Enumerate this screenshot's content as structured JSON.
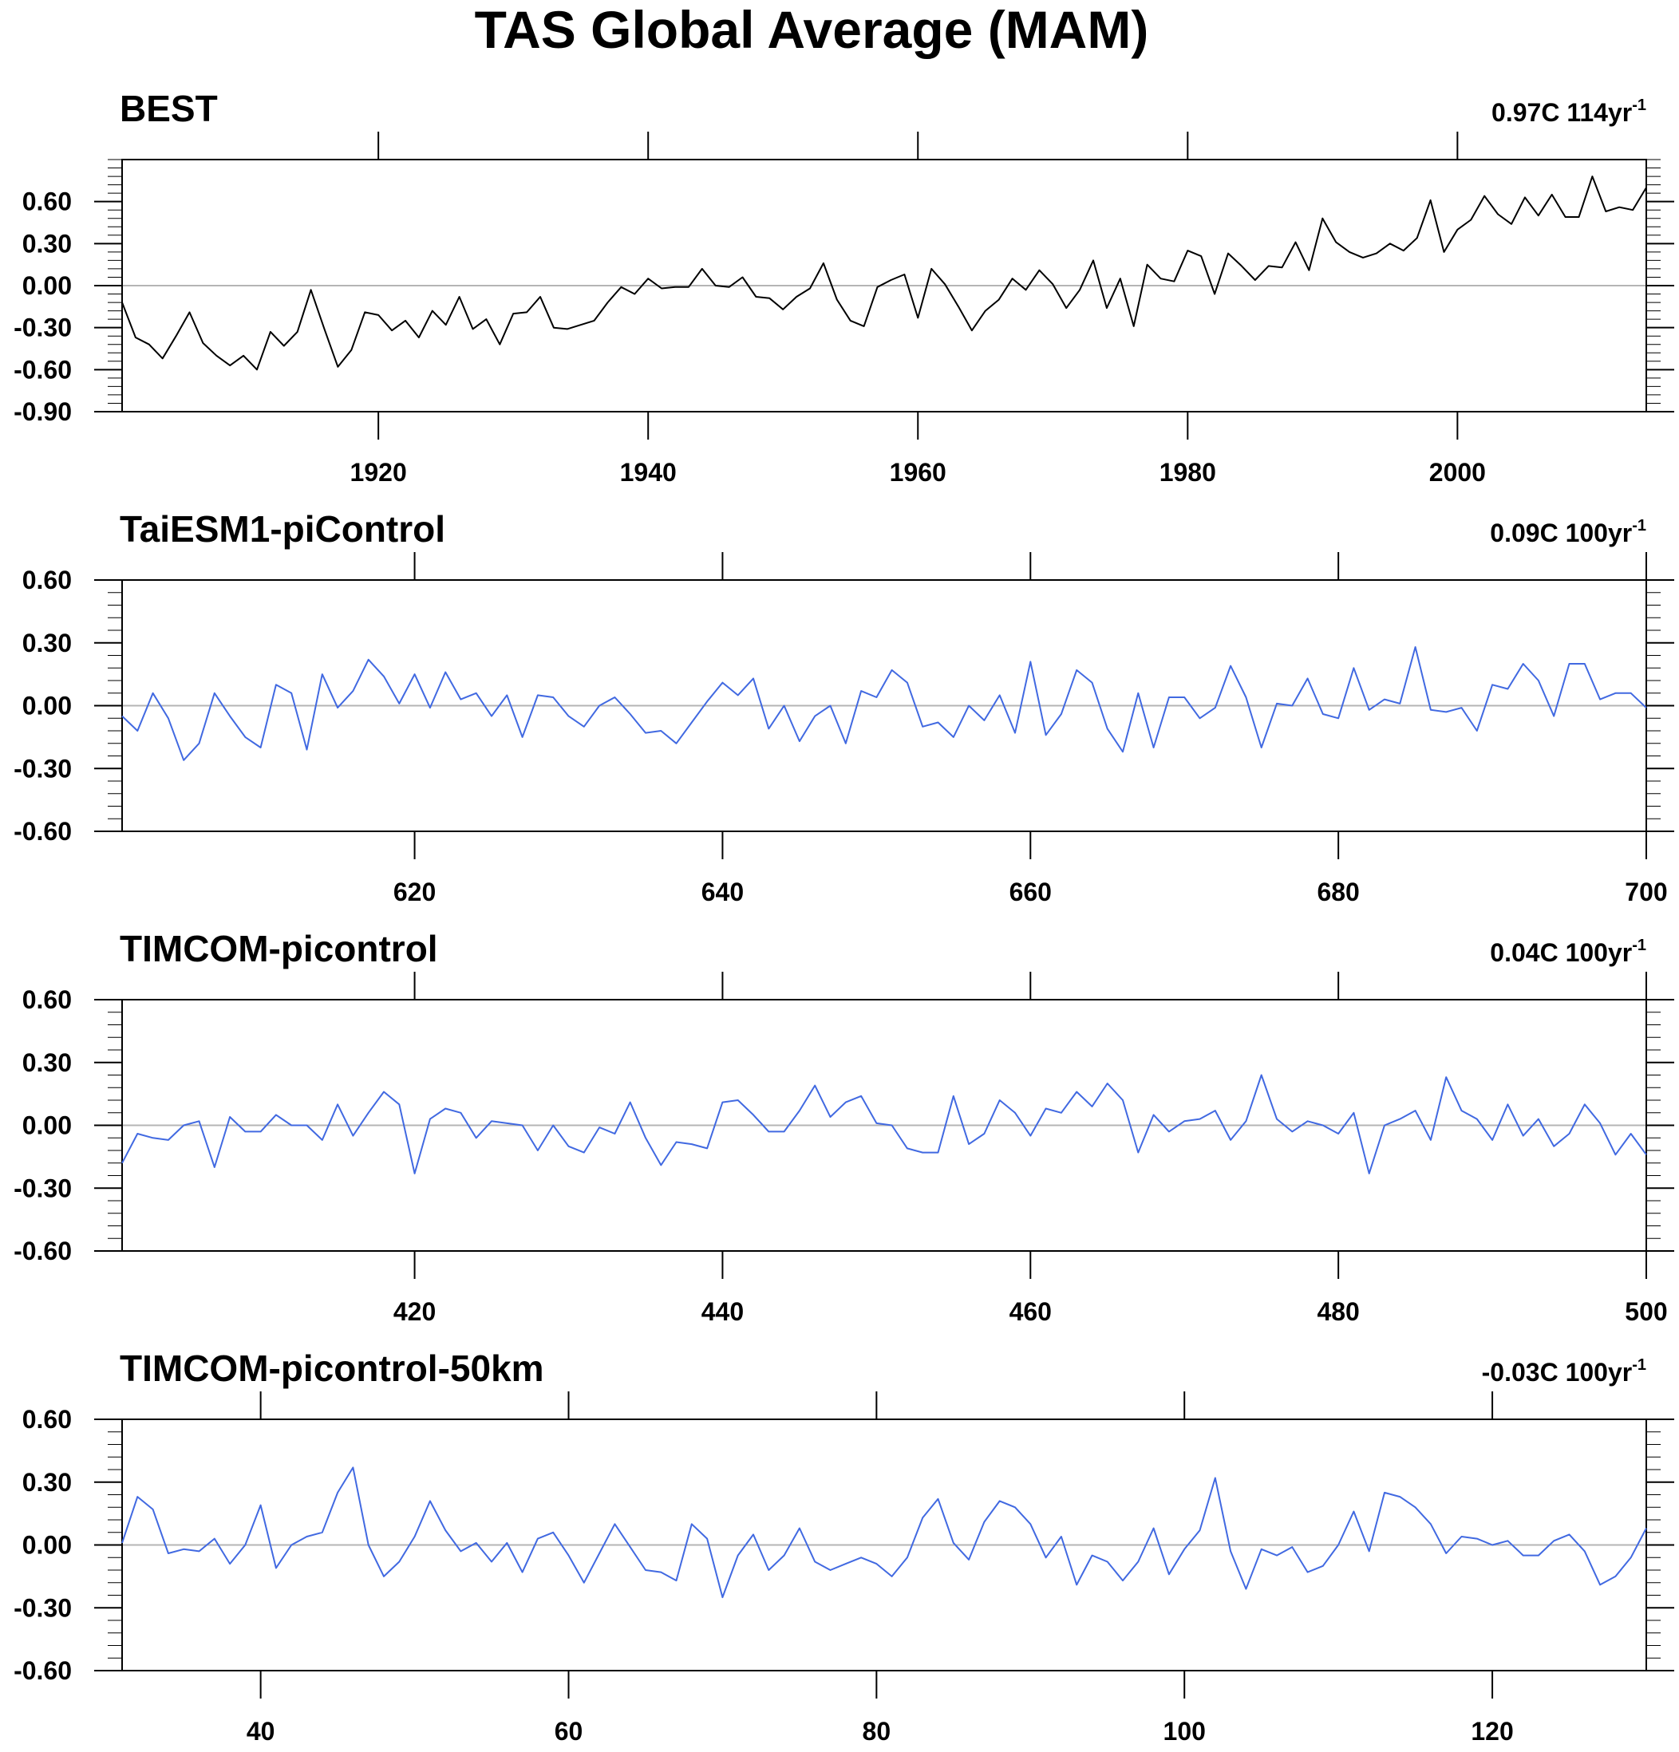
{
  "title": "TAS Global Average (MAM)",
  "chart_data": [
    {
      "type": "line",
      "title": "BEST",
      "trend": {
        "value": "0.97C 114yr",
        "exponent": "-1"
      },
      "xlim": [
        1901,
        2014
      ],
      "ylim": [
        -0.9,
        0.9
      ],
      "xticks": [
        1920,
        1940,
        1960,
        1980,
        2000
      ],
      "xtick_labels": [
        "1920",
        "1940",
        "1960",
        "1980",
        "2000"
      ],
      "yticks": [
        -0.9,
        -0.6,
        -0.3,
        0.0,
        0.3,
        0.6
      ],
      "ytick_labels": [
        "-0.90",
        "-0.60",
        "-0.30",
        "0.00",
        "0.30",
        "0.60"
      ],
      "color": "#000000",
      "x": [
        1901,
        1902,
        1903,
        1904,
        1905,
        1906,
        1907,
        1908,
        1909,
        1910,
        1911,
        1912,
        1913,
        1914,
        1915,
        1916,
        1917,
        1918,
        1919,
        1920,
        1921,
        1922,
        1923,
        1924,
        1925,
        1926,
        1927,
        1928,
        1929,
        1930,
        1931,
        1932,
        1933,
        1934,
        1935,
        1936,
        1937,
        1938,
        1939,
        1940,
        1941,
        1942,
        1943,
        1944,
        1945,
        1946,
        1947,
        1948,
        1949,
        1950,
        1951,
        1952,
        1953,
        1954,
        1955,
        1956,
        1957,
        1958,
        1959,
        1960,
        1961,
        1962,
        1963,
        1964,
        1965,
        1966,
        1967,
        1968,
        1969,
        1970,
        1971,
        1972,
        1973,
        1974,
        1975,
        1976,
        1977,
        1978,
        1979,
        1980,
        1981,
        1982,
        1983,
        1984,
        1985,
        1986,
        1987,
        1988,
        1989,
        1990,
        1991,
        1992,
        1993,
        1994,
        1995,
        1996,
        1997,
        1998,
        1999,
        2000,
        2001,
        2002,
        2003,
        2004,
        2005,
        2006,
        2007,
        2008,
        2009,
        2010,
        2011,
        2012,
        2013,
        2014
      ],
      "y": [
        -0.12,
        -0.37,
        -0.42,
        -0.52,
        -0.36,
        -0.19,
        -0.41,
        -0.5,
        -0.57,
        -0.5,
        -0.6,
        -0.33,
        -0.43,
        -0.33,
        -0.03,
        -0.31,
        -0.58,
        -0.46,
        -0.19,
        -0.21,
        -0.32,
        -0.25,
        -0.37,
        -0.18,
        -0.28,
        -0.08,
        -0.31,
        -0.24,
        -0.42,
        -0.2,
        -0.19,
        -0.08,
        -0.3,
        -0.31,
        -0.28,
        -0.25,
        -0.12,
        -0.01,
        -0.06,
        0.05,
        -0.02,
        -0.01,
        -0.01,
        0.12,
        0.0,
        -0.01,
        0.06,
        -0.08,
        -0.09,
        -0.17,
        -0.08,
        -0.02,
        0.16,
        -0.1,
        -0.25,
        -0.29,
        -0.01,
        0.04,
        0.08,
        -0.23,
        0.12,
        0.01,
        -0.15,
        -0.32,
        -0.18,
        -0.1,
        0.05,
        -0.03,
        0.11,
        0.01,
        -0.16,
        -0.03,
        0.18,
        -0.16,
        0.05,
        -0.29,
        0.15,
        0.05,
        0.03,
        0.25,
        0.21,
        -0.06,
        0.23,
        0.14,
        0.04,
        0.14,
        0.13,
        0.31,
        0.11,
        0.48,
        0.31,
        0.24,
        0.2,
        0.23,
        0.3,
        0.25,
        0.34,
        0.61,
        0.24,
        0.4,
        0.47,
        0.64,
        0.51,
        0.44,
        0.63,
        0.5,
        0.65,
        0.49,
        0.49,
        0.78,
        0.53,
        0.56,
        0.54,
        0.7
      ]
    },
    {
      "type": "line",
      "title": "TaiESM1-piControl",
      "trend": {
        "value": "0.09C 100yr",
        "exponent": "-1"
      },
      "xlim": [
        601,
        700
      ],
      "ylim": [
        -0.6,
        0.6
      ],
      "xticks": [
        620,
        640,
        660,
        680,
        700
      ],
      "xtick_labels": [
        "620",
        "640",
        "660",
        "680",
        "700"
      ],
      "yticks": [
        -0.6,
        -0.3,
        0.0,
        0.3,
        0.6
      ],
      "ytick_labels": [
        "-0.60",
        "-0.30",
        "0.00",
        "0.30",
        "0.60"
      ],
      "color": "#4169e1",
      "x": [
        601,
        602,
        603,
        604,
        605,
        606,
        607,
        608,
        609,
        610,
        611,
        612,
        613,
        614,
        615,
        616,
        617,
        618,
        619,
        620,
        621,
        622,
        623,
        624,
        625,
        626,
        627,
        628,
        629,
        630,
        631,
        632,
        633,
        634,
        635,
        636,
        637,
        638,
        639,
        640,
        641,
        642,
        643,
        644,
        645,
        646,
        647,
        648,
        649,
        650,
        651,
        652,
        653,
        654,
        655,
        656,
        657,
        658,
        659,
        660,
        661,
        662,
        663,
        664,
        665,
        666,
        667,
        668,
        669,
        670,
        671,
        672,
        673,
        674,
        675,
        676,
        677,
        678,
        679,
        680,
        681,
        682,
        683,
        684,
        685,
        686,
        687,
        688,
        689,
        690,
        691,
        692,
        693,
        694,
        695,
        696,
        697,
        698,
        699,
        700
      ],
      "y": [
        -0.05,
        -0.12,
        0.06,
        -0.06,
        -0.26,
        -0.18,
        0.06,
        -0.05,
        -0.15,
        -0.2,
        0.1,
        0.06,
        -0.21,
        0.15,
        -0.01,
        0.07,
        0.22,
        0.14,
        0.01,
        0.15,
        -0.01,
        0.16,
        0.03,
        0.06,
        -0.05,
        0.05,
        -0.15,
        0.05,
        0.04,
        -0.05,
        -0.1,
        -0.0,
        0.04,
        -0.04,
        -0.13,
        -0.12,
        -0.18,
        -0.08,
        0.02,
        0.11,
        0.05,
        0.13,
        -0.11,
        0.0,
        -0.17,
        -0.05,
        0.0,
        -0.18,
        0.07,
        0.04,
        0.17,
        0.11,
        -0.1,
        -0.08,
        -0.15,
        0.0,
        -0.07,
        0.05,
        -0.13,
        0.21,
        -0.14,
        -0.04,
        0.17,
        0.11,
        -0.11,
        -0.22,
        0.06,
        -0.2,
        0.04,
        0.04,
        -0.06,
        -0.01,
        0.19,
        0.04,
        -0.2,
        0.01,
        0.0,
        0.13,
        -0.04,
        -0.06,
        0.18,
        -0.02,
        0.03,
        0.01,
        0.28,
        -0.02,
        -0.03,
        -0.01,
        -0.12,
        0.1,
        0.08,
        0.2,
        0.12,
        -0.05,
        0.2,
        0.2,
        0.03,
        0.06,
        0.06,
        -0.01
      ]
    },
    {
      "type": "line",
      "title": "TIMCOM-picontrol",
      "trend": {
        "value": "0.04C 100yr",
        "exponent": "-1"
      },
      "xlim": [
        401,
        500
      ],
      "ylim": [
        -0.6,
        0.6
      ],
      "xticks": [
        420,
        440,
        460,
        480,
        500
      ],
      "xtick_labels": [
        "420",
        "440",
        "460",
        "480",
        "500"
      ],
      "yticks": [
        -0.6,
        -0.3,
        0.0,
        0.3,
        0.6
      ],
      "ytick_labels": [
        "-0.60",
        "-0.30",
        "0.00",
        "0.30",
        "0.60"
      ],
      "color": "#4169e1",
      "x": [
        401,
        402,
        403,
        404,
        405,
        406,
        407,
        408,
        409,
        410,
        411,
        412,
        413,
        414,
        415,
        416,
        417,
        418,
        419,
        420,
        421,
        422,
        423,
        424,
        425,
        426,
        427,
        428,
        429,
        430,
        431,
        432,
        433,
        434,
        435,
        436,
        437,
        438,
        439,
        440,
        441,
        442,
        443,
        444,
        445,
        446,
        447,
        448,
        449,
        450,
        451,
        452,
        453,
        454,
        455,
        456,
        457,
        458,
        459,
        460,
        461,
        462,
        463,
        464,
        465,
        466,
        467,
        468,
        469,
        470,
        471,
        472,
        473,
        474,
        475,
        476,
        477,
        478,
        479,
        480,
        481,
        482,
        483,
        484,
        485,
        486,
        487,
        488,
        489,
        490,
        491,
        492,
        493,
        494,
        495,
        496,
        497,
        498,
        499,
        500
      ],
      "y": [
        -0.18,
        -0.04,
        -0.06,
        -0.07,
        0.0,
        0.02,
        -0.2,
        0.04,
        -0.03,
        -0.03,
        0.05,
        0.0,
        0.0,
        -0.07,
        0.1,
        -0.05,
        0.06,
        0.16,
        0.1,
        -0.23,
        0.03,
        0.08,
        0.06,
        -0.06,
        0.02,
        0.01,
        0.0,
        -0.12,
        0.0,
        -0.1,
        -0.13,
        -0.01,
        -0.04,
        0.11,
        -0.06,
        -0.19,
        -0.08,
        -0.09,
        -0.11,
        0.11,
        0.12,
        0.05,
        -0.03,
        -0.03,
        0.07,
        0.19,
        0.04,
        0.11,
        0.14,
        0.01,
        0.0,
        -0.11,
        -0.13,
        -0.13,
        0.14,
        -0.09,
        -0.04,
        0.12,
        0.06,
        -0.05,
        0.08,
        0.06,
        0.16,
        0.09,
        0.2,
        0.12,
        -0.13,
        0.05,
        -0.03,
        0.02,
        0.03,
        0.07,
        -0.07,
        0.02,
        0.24,
        0.03,
        -0.03,
        0.02,
        0.0,
        -0.04,
        0.06,
        -0.23,
        0.0,
        0.03,
        0.07,
        -0.07,
        0.23,
        0.07,
        0.03,
        -0.07,
        0.1,
        -0.05,
        0.03,
        -0.1,
        -0.04,
        0.1,
        0.01,
        -0.14,
        -0.04,
        -0.14
      ]
    },
    {
      "type": "line",
      "title": "TIMCOM-picontrol-50km",
      "trend": {
        "value": "-0.03C 100yr",
        "exponent": "-1"
      },
      "xlim": [
        31,
        130
      ],
      "ylim": [
        -0.6,
        0.6
      ],
      "xticks": [
        40,
        60,
        80,
        100,
        120
      ],
      "xtick_labels": [
        "40",
        "60",
        "80",
        "100",
        "120"
      ],
      "yticks": [
        -0.6,
        -0.3,
        0.0,
        0.3,
        0.6
      ],
      "ytick_labels": [
        "-0.60",
        "-0.30",
        "0.00",
        "0.30",
        "0.60"
      ],
      "color": "#4169e1",
      "x": [
        31,
        32,
        33,
        34,
        35,
        36,
        37,
        38,
        39,
        40,
        41,
        42,
        43,
        44,
        45,
        46,
        47,
        48,
        49,
        50,
        51,
        52,
        53,
        54,
        55,
        56,
        57,
        58,
        59,
        60,
        61,
        62,
        63,
        64,
        65,
        66,
        67,
        68,
        69,
        70,
        71,
        72,
        73,
        74,
        75,
        76,
        77,
        78,
        79,
        80,
        81,
        82,
        83,
        84,
        85,
        86,
        87,
        88,
        89,
        90,
        91,
        92,
        93,
        94,
        95,
        96,
        97,
        98,
        99,
        100,
        101,
        102,
        103,
        104,
        105,
        106,
        107,
        108,
        109,
        110,
        111,
        112,
        113,
        114,
        115,
        116,
        117,
        118,
        119,
        120,
        121,
        122,
        123,
        124,
        125,
        126,
        127,
        128,
        129,
        130
      ],
      "y": [
        0.01,
        0.23,
        0.17,
        -0.04,
        -0.02,
        -0.03,
        0.03,
        -0.09,
        -0.0,
        0.19,
        -0.11,
        0.0,
        0.04,
        0.06,
        0.25,
        0.37,
        0.0,
        -0.15,
        -0.08,
        0.04,
        0.21,
        0.07,
        -0.03,
        0.01,
        -0.08,
        0.01,
        -0.13,
        0.03,
        0.06,
        -0.05,
        -0.18,
        -0.04,
        0.1,
        -0.01,
        -0.12,
        -0.13,
        -0.17,
        0.1,
        0.03,
        -0.25,
        -0.05,
        0.05,
        -0.12,
        -0.05,
        0.08,
        -0.08,
        -0.12,
        -0.09,
        -0.06,
        -0.09,
        -0.15,
        -0.06,
        0.13,
        0.22,
        0.01,
        -0.07,
        0.11,
        0.21,
        0.18,
        0.1,
        -0.06,
        0.04,
        -0.19,
        -0.05,
        -0.08,
        -0.17,
        -0.08,
        0.08,
        -0.14,
        -0.02,
        0.07,
        0.32,
        -0.03,
        -0.21,
        -0.02,
        -0.05,
        -0.01,
        -0.13,
        -0.1,
        0.0,
        0.16,
        -0.03,
        0.25,
        0.23,
        0.18,
        0.1,
        -0.04,
        0.04,
        0.03,
        0.0,
        0.02,
        -0.05,
        -0.05,
        0.02,
        0.05,
        -0.03,
        -0.19,
        -0.15,
        -0.06,
        0.08
      ]
    }
  ]
}
